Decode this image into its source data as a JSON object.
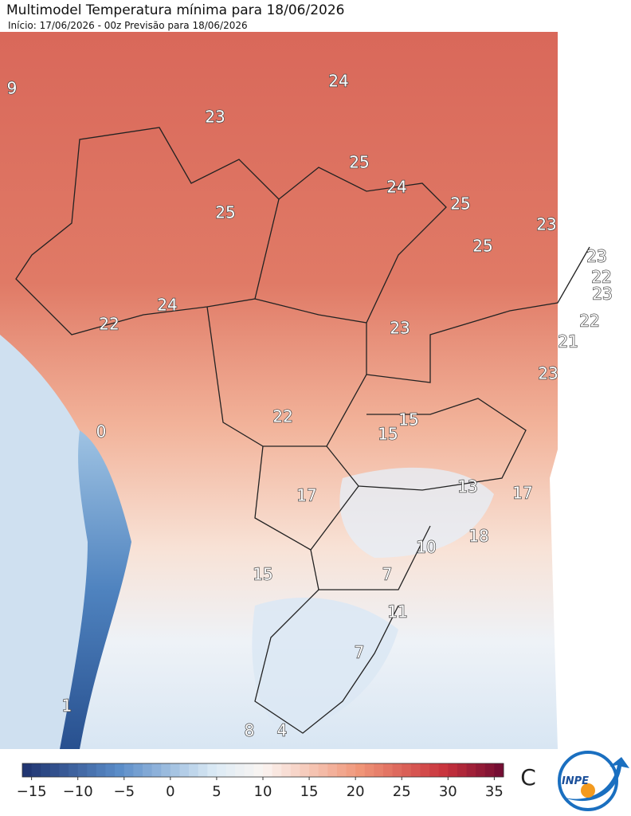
{
  "header": {
    "title": "Multimodel Temperatura mínima para 18/06/2026",
    "subtitle": "Início: 17/06/2026 - 00z  Previsão para 18/06/2026"
  },
  "map": {
    "labels": [
      9,
      23,
      24,
      25,
      25,
      24,
      25,
      25,
      23,
      23,
      22,
      23,
      22,
      21,
      23,
      24,
      22,
      23,
      22,
      15,
      15,
      0,
      17,
      13,
      17,
      18,
      10,
      15,
      7,
      11,
      7,
      1,
      8,
      4
    ]
  },
  "colorbar": {
    "range": [
      -16,
      36
    ],
    "ticks": [
      {
        "value": -15,
        "label": "−15"
      },
      {
        "value": -10,
        "label": "−10"
      },
      {
        "value": -5,
        "label": "−5"
      },
      0,
      5,
      10,
      15,
      20,
      25,
      30,
      35
    ],
    "unit": "C"
  },
  "logo": {
    "text": "INPE"
  }
}
